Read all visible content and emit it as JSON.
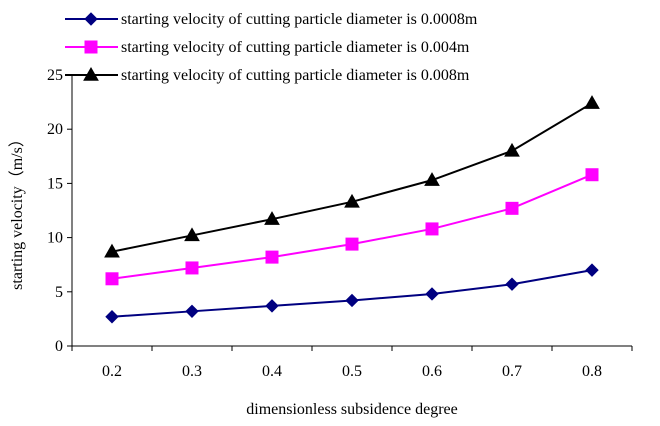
{
  "chart_data": {
    "type": "line",
    "title": "",
    "xlabel": "dimensionless subsidence degree",
    "ylabel": "starting velocity（m/s）",
    "categories": [
      "0.2",
      "0.3",
      "0.4",
      "0.5",
      "0.6",
      "0.7",
      "0.8"
    ],
    "ylim": [
      0,
      25
    ],
    "yticks": [
      "0",
      "5",
      "10",
      "15",
      "20",
      "25"
    ],
    "grid": false,
    "legend_position": "top",
    "series": [
      {
        "name": "starting velocity of cutting particle diameter is 0.0008m",
        "color": "#000080",
        "marker": "diamond",
        "values": [
          2.7,
          3.2,
          3.7,
          4.2,
          4.8,
          5.7,
          7.0
        ]
      },
      {
        "name": "starting velocity of cutting particle diameter is 0.004m",
        "color": "#ff00ff",
        "marker": "square",
        "values": [
          6.2,
          7.2,
          8.2,
          9.4,
          10.8,
          12.7,
          15.8
        ]
      },
      {
        "name": "starting velocity of cutting particle diameter is 0.008m",
        "color": "#000000",
        "marker": "triangle",
        "values": [
          8.7,
          10.2,
          11.7,
          13.3,
          15.3,
          18.0,
          22.4
        ]
      }
    ]
  }
}
